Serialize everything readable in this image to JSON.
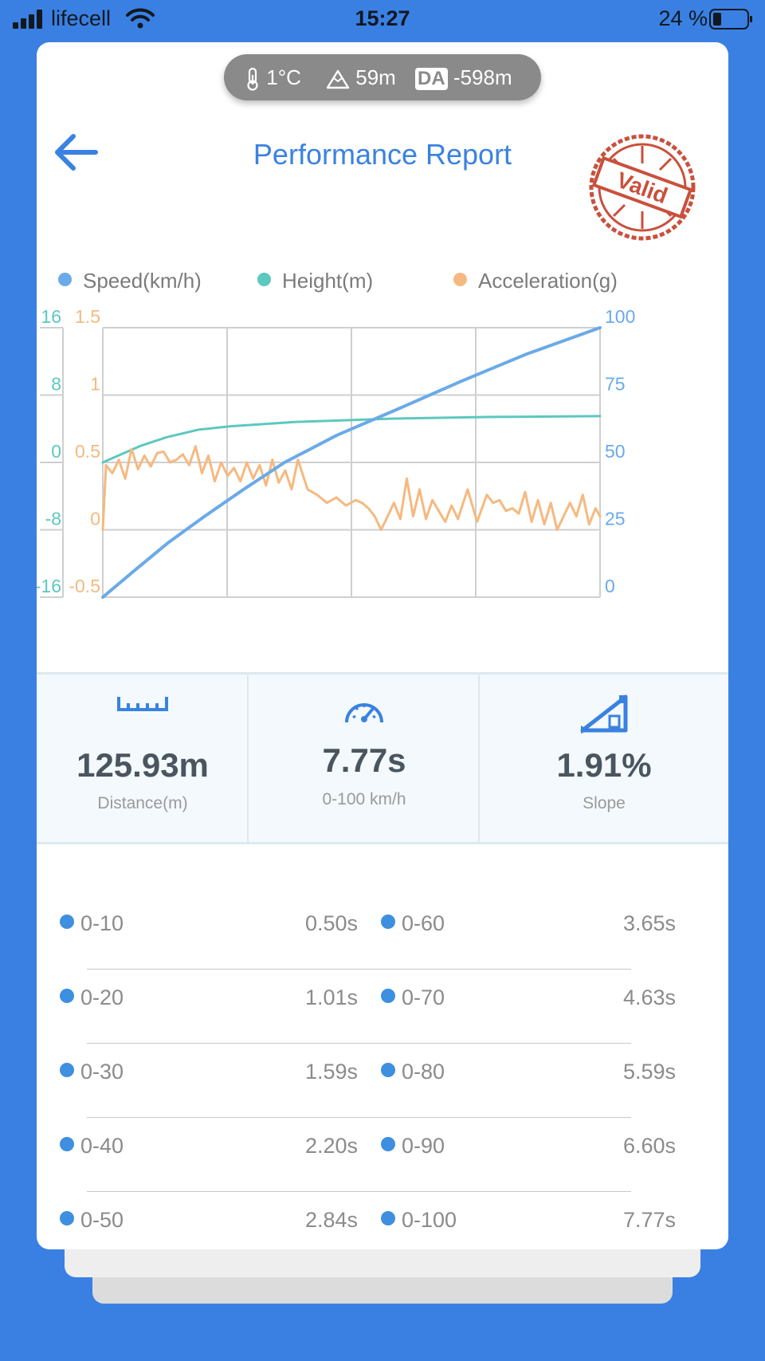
{
  "status_bar": {
    "carrier": "lifecell",
    "time": "15:27",
    "battery": "24 %"
  },
  "environment": {
    "temperature": "1°C",
    "altitude": "59m",
    "da_badge": "DA",
    "density_altitude": "-598m"
  },
  "header": {
    "title": "Performance Report",
    "stamp_text": "Valid"
  },
  "legend": [
    {
      "label": "Speed(km/h)",
      "color": "#6aaae8"
    },
    {
      "label": "Height(m)",
      "color": "#5cc8c0"
    },
    {
      "label": "Acceleration(g)",
      "color": "#f5b980"
    }
  ],
  "chart_data": {
    "type": "line",
    "axes": {
      "height_ticks": [
        "16",
        "8",
        "0",
        "-8",
        "-16"
      ],
      "acceleration_ticks": [
        "1.5",
        "1",
        "0.5",
        "0",
        "-0.5"
      ],
      "speed_ticks": [
        "100",
        "75",
        "50",
        "25",
        "0"
      ],
      "height_range": [
        -16,
        16
      ],
      "acceleration_range": [
        -0.5,
        1.5
      ],
      "speed_range": [
        0,
        100
      ],
      "time_range_s": [
        0,
        7.77
      ]
    },
    "grid": true,
    "series": [
      {
        "name": "Speed(km/h)",
        "axis": "speed",
        "color": "#6aaae8",
        "x": [
          0,
          0.5,
          1.01,
          1.59,
          2.2,
          2.84,
          3.65,
          4.63,
          5.59,
          6.6,
          7.77
        ],
        "y": [
          0,
          10,
          20,
          30,
          40,
          50,
          60,
          70,
          80,
          90,
          100
        ]
      },
      {
        "name": "Height(m)",
        "axis": "height",
        "color": "#5cc8c0",
        "x": [
          0,
          0.3,
          0.6,
          1.0,
          1.5,
          2.0,
          3.0,
          4.5,
          6.0,
          7.77
        ],
        "y": [
          0,
          1.0,
          2.0,
          3.0,
          3.9,
          4.3,
          4.8,
          5.2,
          5.4,
          5.5
        ]
      },
      {
        "name": "Acceleration(g)",
        "axis": "acceleration",
        "color": "#f5b980",
        "x": [
          0,
          0.05,
          0.15,
          0.25,
          0.35,
          0.45,
          0.55,
          0.65,
          0.75,
          0.85,
          0.95,
          1.05,
          1.15,
          1.25,
          1.35,
          1.45,
          1.55,
          1.65,
          1.75,
          1.85,
          1.95,
          2.05,
          2.15,
          2.25,
          2.35,
          2.45,
          2.55,
          2.65,
          2.75,
          2.85,
          2.95,
          3.05,
          3.2,
          3.35,
          3.5,
          3.65,
          3.8,
          3.95,
          4.05,
          4.15,
          4.25,
          4.35,
          4.45,
          4.55,
          4.65,
          4.75,
          4.85,
          4.95,
          5.05,
          5.15,
          5.25,
          5.35,
          5.45,
          5.55,
          5.7,
          5.85,
          6.0,
          6.1,
          6.2,
          6.3,
          6.4,
          6.5,
          6.6,
          6.7,
          6.8,
          6.9,
          7.0,
          7.1,
          7.2,
          7.3,
          7.4,
          7.5,
          7.6,
          7.7,
          7.77
        ],
        "y": [
          0,
          0.48,
          0.42,
          0.52,
          0.38,
          0.6,
          0.45,
          0.55,
          0.47,
          0.57,
          0.58,
          0.5,
          0.52,
          0.56,
          0.48,
          0.62,
          0.42,
          0.55,
          0.36,
          0.5,
          0.4,
          0.46,
          0.36,
          0.5,
          0.38,
          0.48,
          0.33,
          0.52,
          0.35,
          0.44,
          0.3,
          0.52,
          0.3,
          0.26,
          0.2,
          0.24,
          0.18,
          0.22,
          0.2,
          0.16,
          0.1,
          0.0,
          0.1,
          0.2,
          0.08,
          0.38,
          0.1,
          0.3,
          0.08,
          0.22,
          0.14,
          0.06,
          0.18,
          0.08,
          0.3,
          0.06,
          0.26,
          0.2,
          0.22,
          0.14,
          0.16,
          0.12,
          0.28,
          0.06,
          0.22,
          0.04,
          0.2,
          0.0,
          0.1,
          0.2,
          0.1,
          0.26,
          0.04,
          0.16,
          0.1
        ]
      }
    ]
  },
  "stats": [
    {
      "value": "125.93m",
      "label": "Distance(m)",
      "icon": "ruler-icon"
    },
    {
      "value": "7.77s",
      "label": "0-100 km/h",
      "icon": "speedometer-icon"
    },
    {
      "value": "1.91%",
      "label": "Slope",
      "icon": "slope-icon"
    }
  ],
  "splits": [
    {
      "range": "0-10",
      "time": "0.50s"
    },
    {
      "range": "0-20",
      "time": "1.01s"
    },
    {
      "range": "0-30",
      "time": "1.59s"
    },
    {
      "range": "0-40",
      "time": "2.20s"
    },
    {
      "range": "0-50",
      "time": "2.84s"
    },
    {
      "range": "0-60",
      "time": "3.65s"
    },
    {
      "range": "0-70",
      "time": "4.63s"
    },
    {
      "range": "0-80",
      "time": "5.59s"
    },
    {
      "range": "0-90",
      "time": "6.60s"
    },
    {
      "range": "0-100",
      "time": "7.77s"
    }
  ]
}
